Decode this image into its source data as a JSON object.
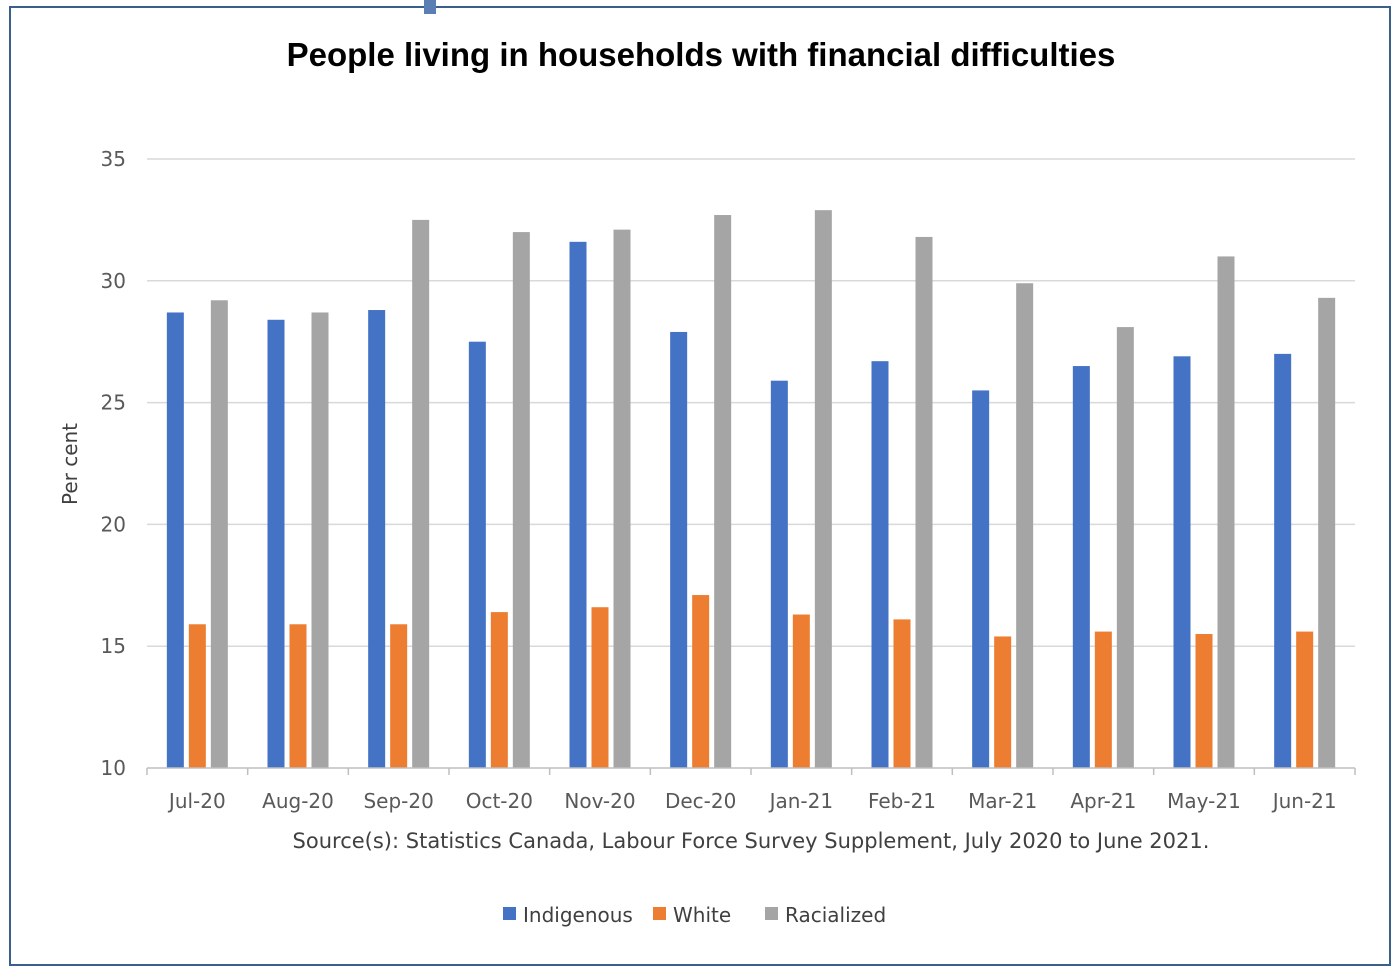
{
  "chart_data": {
    "type": "bar",
    "title": "People living in households with financial difficulties",
    "ylabel": "Per cent",
    "xlabel": "",
    "source": "Source(s): Statistics Canada, Labour Force Survey Supplement, July 2020 to June 2021.",
    "ylim": [
      10,
      35
    ],
    "yticks": [
      "10",
      "15",
      "20",
      "25",
      "30",
      "35"
    ],
    "grid": true,
    "legend_position": "bottom",
    "categories": [
      "Jul-20",
      "Aug-20",
      "Sep-20",
      "Oct-20",
      "Nov-20",
      "Dec-20",
      "Jan-21",
      "Feb-21",
      "Mar-21",
      "Apr-21",
      "May-21",
      "Jun-21"
    ],
    "series": [
      {
        "name": "Indigenous",
        "color": "#4472c4",
        "values": [
          28.7,
          28.4,
          28.8,
          27.5,
          31.6,
          27.9,
          25.9,
          26.7,
          25.5,
          26.5,
          26.9,
          27.0
        ]
      },
      {
        "name": "White",
        "color": "#ed7d31",
        "values": [
          15.9,
          15.9,
          15.9,
          16.4,
          16.6,
          17.1,
          16.3,
          16.1,
          15.4,
          15.6,
          15.5,
          15.6
        ]
      },
      {
        "name": "Racialized",
        "color": "#a5a5a5",
        "values": [
          29.2,
          28.7,
          32.5,
          32.0,
          32.1,
          32.7,
          32.9,
          31.8,
          29.9,
          28.1,
          31.0,
          29.3
        ]
      }
    ]
  }
}
